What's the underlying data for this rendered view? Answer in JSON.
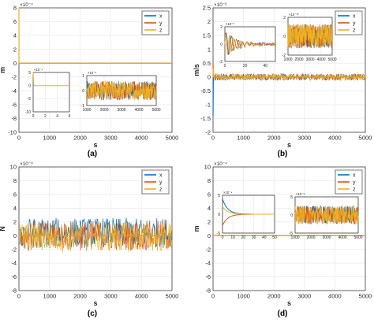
{
  "colors": {
    "x": "#0072BD",
    "y": "#D95319",
    "z": "#EDB120",
    "axis": "#262626",
    "grid": "#e6e6e6"
  },
  "chart_data": [
    {
      "type": "line",
      "label": "(a)",
      "title": "",
      "xlabel": "s",
      "ylabel": "m",
      "y_exponent": "×10⁻⁴",
      "xlim": [
        0,
        5000
      ],
      "ylim": [
        -10,
        8
      ],
      "xticks": [
        "0",
        "1000",
        "2000",
        "3000",
        "4000",
        "5000"
      ],
      "yticks": [
        "-10",
        "-8",
        "-6",
        "-4",
        "-2",
        "0",
        "2",
        "4",
        "6",
        "8"
      ],
      "legend": [
        "x",
        "y",
        "z"
      ],
      "legend_position": "top-right",
      "series": [
        {
          "name": "x",
          "x": [
            0,
            2,
            5,
            5000
          ],
          "y": [
            0,
            0,
            0,
            0
          ]
        },
        {
          "name": "y",
          "x": [
            0,
            2,
            5,
            5000
          ],
          "y": [
            0,
            0,
            0,
            0
          ]
        },
        {
          "name": "z",
          "x": [
            0,
            2,
            5,
            5000
          ],
          "y": [
            8,
            3,
            0,
            0
          ]
        }
      ],
      "insets": [
        {
          "position": "lower-left",
          "y_exponent": "×10⁻⁴",
          "xlim": [
            0,
            6
          ],
          "ylim": [
            -10,
            5
          ],
          "xticks": [
            "0",
            "2",
            "4",
            "6"
          ],
          "yticks": [
            "-10",
            "-5",
            "0",
            "5"
          ],
          "series": [
            {
              "name": "z",
              "x": [
                0,
                0.1,
                6
              ],
              "y": [
                5,
                0,
                0
              ]
            }
          ]
        },
        {
          "position": "lower-right",
          "y_exponent": "×10⁻⁸",
          "xlim": [
            1000,
            5000
          ],
          "ylim": [
            -1,
            1
          ],
          "xticks": [
            "1000",
            "2000",
            "3000",
            "4000",
            "5000"
          ],
          "yticks": [
            "-1",
            "0",
            "1"
          ],
          "noise_amplitude": 0.75
        }
      ]
    },
    {
      "type": "line",
      "label": "(b)",
      "title": "",
      "xlabel": "s",
      "ylabel": "m/s",
      "y_exponent": "×10⁻⁶",
      "xlim": [
        0,
        5000
      ],
      "ylim": [
        -2,
        2.5
      ],
      "xticks": [
        "0",
        "1000",
        "2000",
        "3000",
        "4000",
        "5000"
      ],
      "yticks": [
        "-2",
        "-1.5",
        "-1",
        "-0.5",
        "0",
        "0.5",
        "1",
        "1.5",
        "2",
        "2.5"
      ],
      "legend": [
        "x",
        "y",
        "z"
      ],
      "legend_position": "top-right",
      "series": [
        {
          "name": "x",
          "x": [
            0,
            10,
            5000
          ],
          "y": [
            -1.4,
            0,
            0
          ]
        },
        {
          "name": "y",
          "x": [
            0,
            10,
            5000
          ],
          "y": [
            0.5,
            0,
            0
          ]
        },
        {
          "name": "z",
          "x": [
            0,
            10,
            5000
          ],
          "y": [
            0.3,
            0,
            0
          ]
        }
      ],
      "noise_amplitude": 0.12,
      "insets": [
        {
          "position": "upper-left",
          "y_exponent": "×10⁻⁶",
          "xlim": [
            0,
            50
          ],
          "ylim": [
            -2,
            2
          ],
          "xticks": [
            "0",
            "20",
            "40"
          ],
          "yticks": [
            "-2",
            "0",
            "2"
          ],
          "damped": true
        },
        {
          "position": "upper-right",
          "y_exponent": "×10⁻¹⁰",
          "xlim": [
            1000,
            5000
          ],
          "ylim": [
            -2,
            2
          ],
          "xticks": [
            "1000",
            "2000",
            "3000",
            "4000",
            "5000"
          ],
          "yticks": [
            "-2",
            "0",
            "2"
          ],
          "noise_amplitude": 1.5
        }
      ]
    },
    {
      "type": "line",
      "label": "(c)",
      "title": "",
      "xlabel": "s",
      "ylabel": "N",
      "y_exponent": "×10⁻⁸",
      "xlim": [
        0,
        5000
      ],
      "ylim": [
        -8,
        10
      ],
      "xticks": [
        "0",
        "1000",
        "2000",
        "3000",
        "4000",
        "5000"
      ],
      "yticks": [
        "-8",
        "-6",
        "-4",
        "-2",
        "0",
        "2",
        "4",
        "6",
        "8",
        "10"
      ],
      "legend": [
        "x",
        "y",
        "z"
      ],
      "legend_position": "top-right",
      "series": [
        {
          "name": "x",
          "x": [
            0,
            5000
          ],
          "y": [
            0,
            0
          ]
        },
        {
          "name": "y",
          "x": [
            0,
            5000
          ],
          "y": [
            0,
            0
          ]
        },
        {
          "name": "z",
          "x": [
            0,
            5000
          ],
          "y": [
            0,
            0
          ]
        }
      ],
      "noise_amplitude": 2.2,
      "noise_offsets": {
        "x": 0.4,
        "y": 0.0,
        "z": -0.2
      }
    },
    {
      "type": "line",
      "label": "(d)",
      "title": "",
      "xlabel": "s",
      "ylabel": "m",
      "y_exponent": "×10⁻⁴",
      "xlim": [
        0,
        5000
      ],
      "ylim": [
        -8,
        10
      ],
      "xticks": [
        "0",
        "1000",
        "2000",
        "3000",
        "4000",
        "5000"
      ],
      "yticks": [
        "-8",
        "-6",
        "-4",
        "-2",
        "0",
        "2",
        "4",
        "6",
        "8",
        "10"
      ],
      "legend": [
        "x",
        "y",
        "z"
      ],
      "legend_position": "top-right",
      "series": [
        {
          "name": "x",
          "x": [
            0,
            5000
          ],
          "y": [
            0,
            0
          ]
        },
        {
          "name": "y",
          "x": [
            0,
            5000
          ],
          "y": [
            0,
            0
          ]
        },
        {
          "name": "z",
          "x": [
            0,
            5000
          ],
          "y": [
            0,
            0
          ]
        }
      ],
      "insets": [
        {
          "position": "upper-left",
          "y_exponent": "×10⁻⁴",
          "xlim": [
            0,
            50
          ],
          "ylim": [
            -5,
            5
          ],
          "xticks": [
            "0",
            "10",
            "20",
            "30",
            "40",
            "50"
          ],
          "yticks": [
            "-5",
            "0",
            "5"
          ],
          "decay": {
            "x": 4,
            "y": -3,
            "z": 2
          }
        },
        {
          "position": "upper-right",
          "y_exponent": "×10⁻⁸",
          "xlim": [
            1000,
            5000
          ],
          "ylim": [
            -5,
            5
          ],
          "xticks": [
            "1000",
            "2000",
            "3000",
            "4000",
            "5000"
          ],
          "yticks": [
            "-5",
            "0",
            "5"
          ],
          "noise_amplitude": 3
        }
      ]
    }
  ]
}
